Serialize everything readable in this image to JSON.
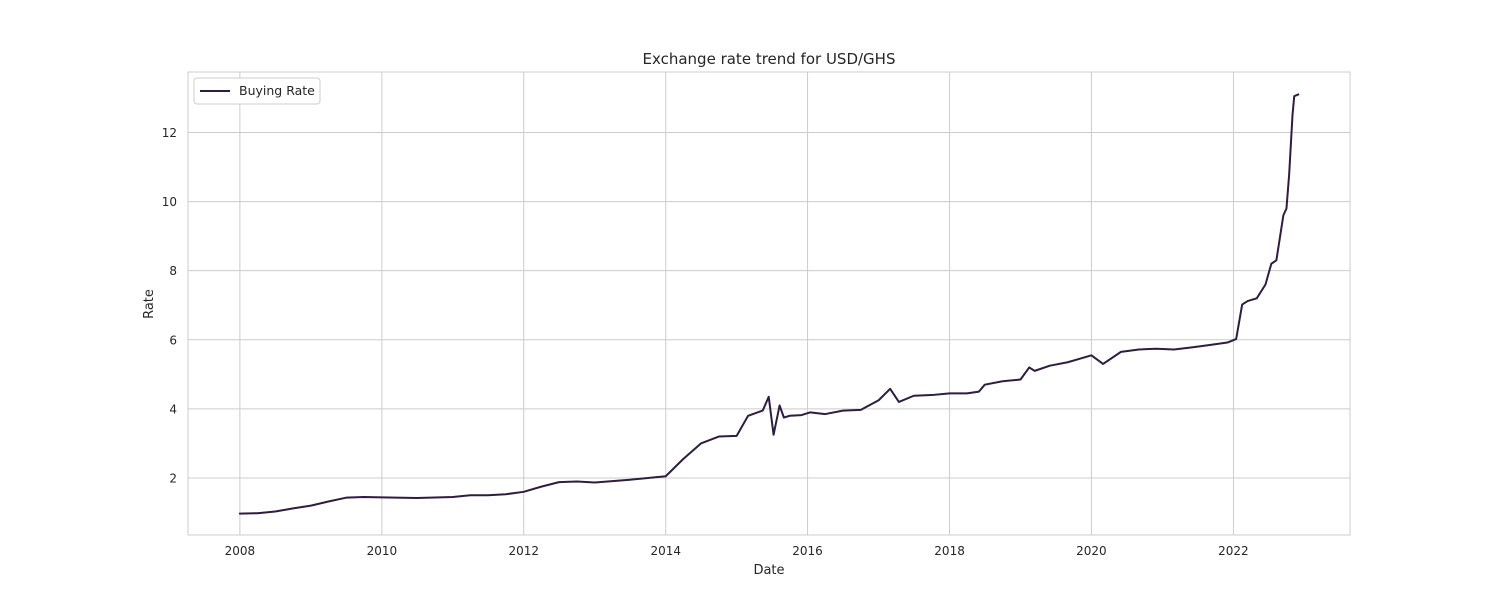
{
  "chart_data": {
    "type": "line",
    "title": "Exchange rate trend for USD/GHS",
    "xlabel": "Date",
    "ylabel": "Rate",
    "x_axis_type": "date",
    "xlim": [
      "2007-04-09",
      "2023-08-24"
    ],
    "ylim": [
      0.35,
      13.75
    ],
    "x_ticks": [
      "2008-01-01",
      "2010-01-01",
      "2012-01-01",
      "2014-01-01",
      "2016-01-01",
      "2018-01-01",
      "2020-01-01",
      "2022-01-01"
    ],
    "x_tick_labels": [
      "2008",
      "2010",
      "2012",
      "2014",
      "2016",
      "2018",
      "2020",
      "2022"
    ],
    "y_ticks": [
      2,
      4,
      6,
      8,
      10,
      12
    ],
    "y_tick_labels": [
      "2",
      "4",
      "6",
      "8",
      "10",
      "12"
    ],
    "grid": true,
    "legend_position": "top-left",
    "colors": {
      "line": "#2d1e3e",
      "grid": "#cccccc",
      "frame": "#cccccc"
    },
    "series": [
      {
        "name": "Buying Rate",
        "x": [
          "2008-01-01",
          "2008-04-01",
          "2008-07-01",
          "2008-10-01",
          "2009-01-01",
          "2009-04-01",
          "2009-07-01",
          "2009-10-01",
          "2010-01-01",
          "2010-07-01",
          "2011-01-01",
          "2011-04-01",
          "2011-07-01",
          "2011-10-01",
          "2012-01-01",
          "2012-04-01",
          "2012-07-01",
          "2012-10-01",
          "2013-01-01",
          "2013-07-01",
          "2013-10-01",
          "2014-01-01",
          "2014-04-01",
          "2014-07-01",
          "2014-10-01",
          "2015-01-01",
          "2015-03-01",
          "2015-05-15",
          "2015-06-15",
          "2015-07-10",
          "2015-08-10",
          "2015-09-01",
          "2015-10-01",
          "2015-12-01",
          "2016-01-15",
          "2016-04-01",
          "2016-07-01",
          "2016-10-01",
          "2017-01-01",
          "2017-03-01",
          "2017-04-15",
          "2017-07-01",
          "2017-10-01",
          "2018-01-01",
          "2018-04-01",
          "2018-06-01",
          "2018-07-01",
          "2018-10-01",
          "2019-01-01",
          "2019-02-15",
          "2019-03-15",
          "2019-06-01",
          "2019-09-01",
          "2019-11-01",
          "2020-01-01",
          "2020-03-01",
          "2020-06-01",
          "2020-09-01",
          "2020-12-01",
          "2021-03-01",
          "2021-06-01",
          "2021-09-01",
          "2021-12-01",
          "2022-01-15",
          "2022-02-15",
          "2022-03-15",
          "2022-05-01",
          "2022-06-15",
          "2022-07-15",
          "2022-08-10",
          "2022-09-15",
          "2022-10-01",
          "2022-10-15",
          "2022-11-01",
          "2022-11-10",
          "2022-12-01"
        ],
        "values": [
          0.97,
          0.98,
          1.03,
          1.12,
          1.2,
          1.32,
          1.43,
          1.45,
          1.44,
          1.42,
          1.45,
          1.5,
          1.5,
          1.53,
          1.6,
          1.75,
          1.88,
          1.9,
          1.87,
          1.95,
          2.0,
          2.05,
          2.55,
          3.0,
          3.2,
          3.22,
          3.8,
          3.95,
          4.35,
          3.25,
          4.1,
          3.75,
          3.8,
          3.82,
          3.9,
          3.85,
          3.95,
          3.97,
          4.25,
          4.58,
          4.2,
          4.38,
          4.4,
          4.45,
          4.45,
          4.5,
          4.7,
          4.8,
          4.85,
          5.2,
          5.1,
          5.25,
          5.35,
          5.45,
          5.55,
          5.3,
          5.65,
          5.72,
          5.74,
          5.72,
          5.78,
          5.85,
          5.92,
          6.02,
          7.02,
          7.12,
          7.2,
          7.6,
          8.2,
          8.3,
          9.6,
          9.8,
          10.8,
          12.5,
          13.05,
          13.1
        ]
      }
    ]
  }
}
